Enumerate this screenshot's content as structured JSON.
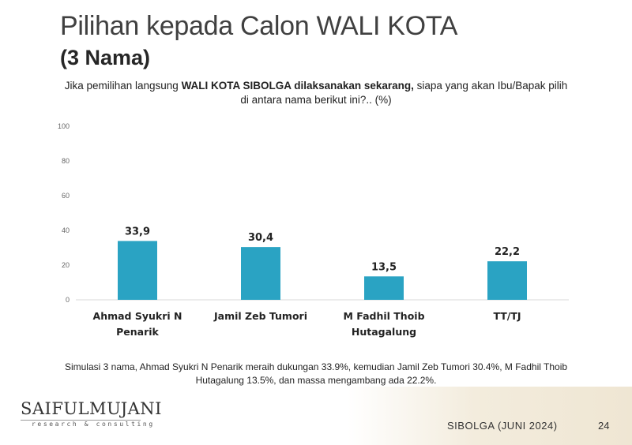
{
  "slide": {
    "title": "Pilihan kepada Calon WALI KOTA",
    "subtitle": "(3 Nama)",
    "question_pre": "Jika pemilihan langsung ",
    "question_bold": "WALI KOTA SIBOLGA dilaksanakan sekarang,",
    "question_post": " siapa yang akan Ibu/Bapak pilih",
    "question_line2": "di antara nama berikut ini?.. (%)",
    "footnote_line1": "Simulasi 3 nama, Ahmad Syukri N Penarik meraih dukungan 33.9%, kemudian Jamil Zeb Tumori 30.4%, M Fadhil Thoib",
    "footnote_line2": "Hutagalung 13.5%, dan massa mengambang ada 22.2%.",
    "logo_main": "SAIFULMUJANI",
    "logo_sub": "research & consulting",
    "footer_label": "SIBOLGA (JUNI 2024)",
    "page_number": "24"
  },
  "chart_data": {
    "type": "bar",
    "categories": [
      [
        "Ahmad Syukri N",
        "Penarik"
      ],
      [
        "Jamil Zeb Tumori"
      ],
      [
        "M Fadhil Thoib",
        "Hutagalung"
      ],
      [
        "TT/TJ"
      ]
    ],
    "values": [
      33.9,
      30.4,
      13.5,
      22.2
    ],
    "data_labels": [
      "33,9",
      "30,4",
      "13,5",
      "22,2"
    ],
    "yticks": [
      "0",
      "20",
      "40",
      "60",
      "80",
      "100"
    ],
    "ylim": [
      0,
      100
    ],
    "grid": false,
    "bar_color": "#2aa3c3"
  }
}
